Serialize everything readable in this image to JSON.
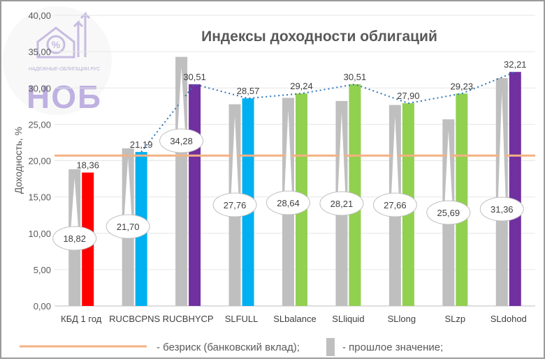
{
  "logo": {
    "site": "НАДЕЖНЫЕ-ОБЛИГАЦИИ.РУС",
    "mark": "НОБ"
  },
  "chart_data": {
    "type": "bar",
    "title": "Индексы доходности облигаций",
    "ylabel": "Доходность, %",
    "xlabel": "",
    "ylim": [
      0,
      40
    ],
    "yticks": [
      "0,00",
      "5,00",
      "10,00",
      "15,00",
      "20,00",
      "25,00",
      "30,00",
      "35,00",
      "40,00"
    ],
    "grid": true,
    "categories": [
      "КБД 1 год",
      "RUCBCPNS",
      "RUCBHYCP",
      "SLFULL",
      "SLbalance",
      "SLliquid",
      "SLlong",
      "SLzp",
      "SLdohod"
    ],
    "series": [
      {
        "kind": "previous",
        "values": [
          18.82,
          21.7,
          34.28,
          27.76,
          28.64,
          28.21,
          27.66,
          25.69,
          31.36
        ],
        "labels": [
          "18,82",
          "21,70",
          "34,28",
          "27,76",
          "28,64",
          "28,21",
          "27,66",
          "25,69",
          "31,36"
        ],
        "color": "#bfbfbf"
      },
      {
        "kind": "current",
        "values": [
          18.36,
          21.19,
          30.51,
          28.57,
          29.24,
          30.51,
          27.9,
          29.23,
          32.21
        ],
        "labels": [
          "18,36",
          "21,19",
          "30,51",
          "28,57",
          "29,24",
          "30,51",
          "27,90",
          "29,23",
          "32,21"
        ],
        "colors": [
          "#ff0000",
          "#00b0f0",
          "#7030a0",
          "#00b0f0",
          "#92d050",
          "#92d050",
          "#92d050",
          "#92d050",
          "#7030a0"
        ]
      }
    ],
    "risk_free": {
      "value": 20.7,
      "color": "#f4b183"
    },
    "dotted_line": {
      "from_category": 1,
      "color": "#2e75b6"
    },
    "legend": {
      "placement": "bottom",
      "items": [
        {
          "label": "- безриск (банковский вклад);",
          "swatch": "line",
          "color": "#f4b183"
        },
        {
          "label": "- прошлое значение;",
          "swatch": "bar",
          "color": "#bfbfbf"
        }
      ]
    }
  }
}
